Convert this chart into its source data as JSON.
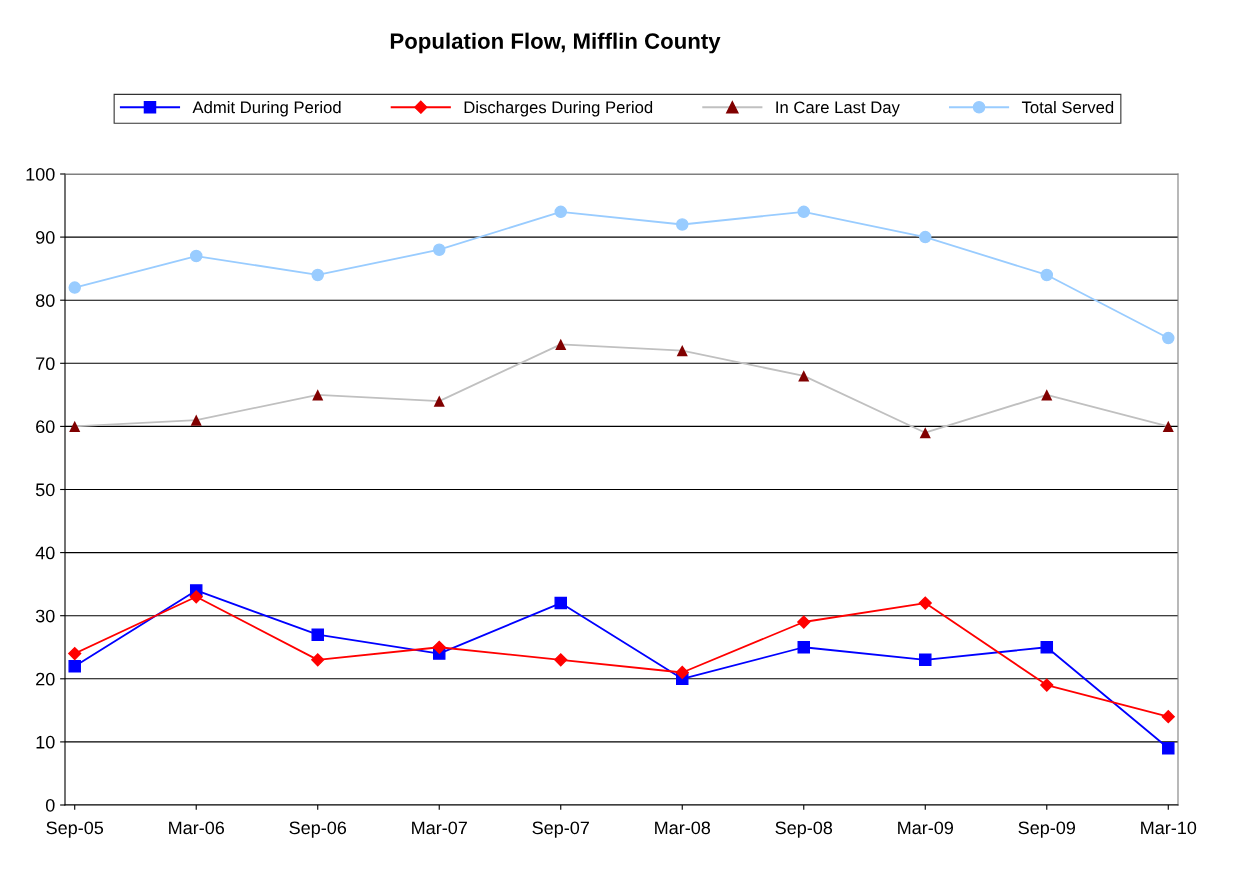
{
  "chart_data": {
    "type": "line",
    "title": "Population Flow, Mifflin County",
    "categories": [
      "Sep-05",
      "Mar-06",
      "Sep-06",
      "Mar-07",
      "Sep-07",
      "Mar-08",
      "Sep-08",
      "Mar-09",
      "Sep-09",
      "Mar-10"
    ],
    "series": [
      {
        "name": "Admit During Period",
        "color": "#0000ff",
        "marker": "square",
        "values": [
          22,
          34,
          27,
          24,
          32,
          20,
          25,
          23,
          25,
          9
        ]
      },
      {
        "name": "Discharges During Period",
        "color": "#ff0000",
        "marker": "diamond",
        "values": [
          24,
          33,
          23,
          25,
          23,
          21,
          29,
          32,
          19,
          14
        ]
      },
      {
        "name": "In Care Last Day",
        "color": "#c0c0c0",
        "marker": "triangle",
        "colors": [
          "#800000",
          "#800000",
          "#800000",
          "#800000",
          "#800000",
          "#800000",
          "#800000",
          "#800000",
          "#800000",
          "#800000"
        ],
        "values": [
          60,
          61,
          65,
          64,
          73,
          72,
          68,
          59,
          65,
          60
        ]
      },
      {
        "name": "Total Served",
        "color": "#99ccff",
        "marker": "circle",
        "values": [
          82,
          87,
          84,
          88,
          94,
          92,
          94,
          90,
          84,
          74
        ]
      }
    ],
    "ylim": [
      0,
      100
    ],
    "yticks": [
      0,
      10,
      20,
      30,
      40,
      50,
      60,
      70,
      80,
      90,
      100
    ],
    "grid": "y",
    "legend": "top",
    "line_style": "solid"
  }
}
